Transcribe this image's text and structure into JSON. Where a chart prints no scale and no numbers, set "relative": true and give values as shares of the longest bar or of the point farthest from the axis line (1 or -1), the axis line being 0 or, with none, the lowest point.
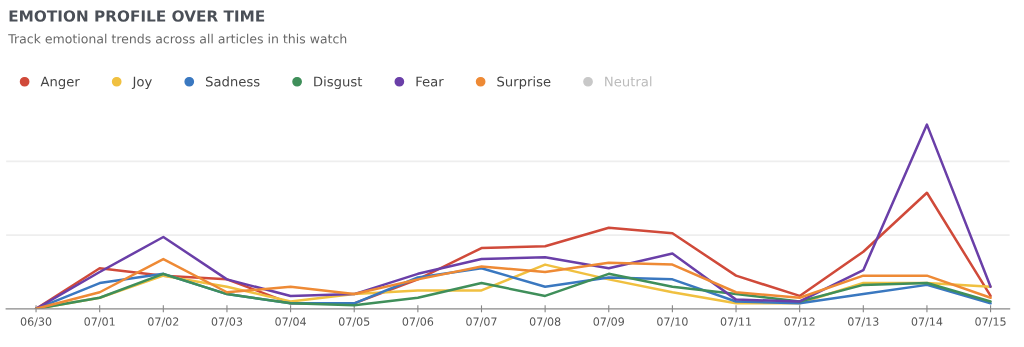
{
  "chart_data": {
    "type": "line",
    "title": "EMOTION PROFILE OVER TIME",
    "subtitle": "Track emotional trends across all articles in this watch",
    "categories": [
      "06/30",
      "07/01",
      "07/02",
      "07/03",
      "07/04",
      "07/05",
      "07/06",
      "07/07",
      "07/08",
      "07/09",
      "07/10",
      "07/11",
      "07/12",
      "07/13",
      "07/14",
      "07/15"
    ],
    "relative": true,
    "ref_lines": [
      {
        "axis": "y",
        "value": 0.4,
        "color": "#eeeeee"
      },
      {
        "axis": "y",
        "value": 0.8,
        "color": "#eeeeee"
      }
    ],
    "legend": "top left",
    "marker": "none",
    "line_style": "solid",
    "series": [
      {
        "name": "Anger",
        "color": "#d04a3a",
        "values": [
          0,
          0.22,
          0.18,
          0.16,
          0.03,
          0.03,
          0.16,
          0.33,
          0.34,
          0.44,
          0.41,
          0.18,
          0.07,
          0.31,
          0.63,
          0.07
        ]
      },
      {
        "name": "Joy",
        "color": "#f0c040",
        "values": [
          0,
          0.06,
          0.18,
          0.12,
          0.04,
          0.08,
          0.1,
          0.1,
          0.24,
          0.16,
          0.09,
          0.03,
          0.03,
          0.14,
          0.14,
          0.12
        ]
      },
      {
        "name": "Sadness",
        "color": "#3a78c0",
        "values": [
          0,
          0.14,
          0.19,
          0.08,
          0.03,
          0.03,
          0.17,
          0.22,
          0.12,
          0.17,
          0.16,
          0.04,
          0.03,
          0.08,
          0.13,
          0.03
        ]
      },
      {
        "name": "Disgust",
        "color": "#3f8f5a",
        "values": [
          0,
          0.06,
          0.19,
          0.08,
          0.03,
          0.02,
          0.06,
          0.14,
          0.07,
          0.19,
          0.12,
          0.08,
          0.04,
          0.13,
          0.14,
          0.04
        ]
      },
      {
        "name": "Fear",
        "color": "#6a3fa8",
        "values": [
          0,
          0.2,
          0.39,
          0.16,
          0.07,
          0.08,
          0.19,
          0.27,
          0.28,
          0.22,
          0.3,
          0.05,
          0.04,
          0.21,
          1,
          0.12
        ]
      },
      {
        "name": "Surprise",
        "color": "#ee8a35",
        "values": [
          0,
          0.09,
          0.27,
          0.09,
          0.12,
          0.08,
          0.16,
          0.23,
          0.2,
          0.25,
          0.24,
          0.09,
          0.06,
          0.18,
          0.18,
          0.06
        ]
      },
      {
        "name": "Neutral",
        "color": "#c8c8c8",
        "values": [
          null,
          null,
          null,
          null,
          null,
          null,
          null,
          null,
          null,
          null,
          null,
          null,
          null,
          null,
          null,
          null
        ]
      }
    ]
  }
}
